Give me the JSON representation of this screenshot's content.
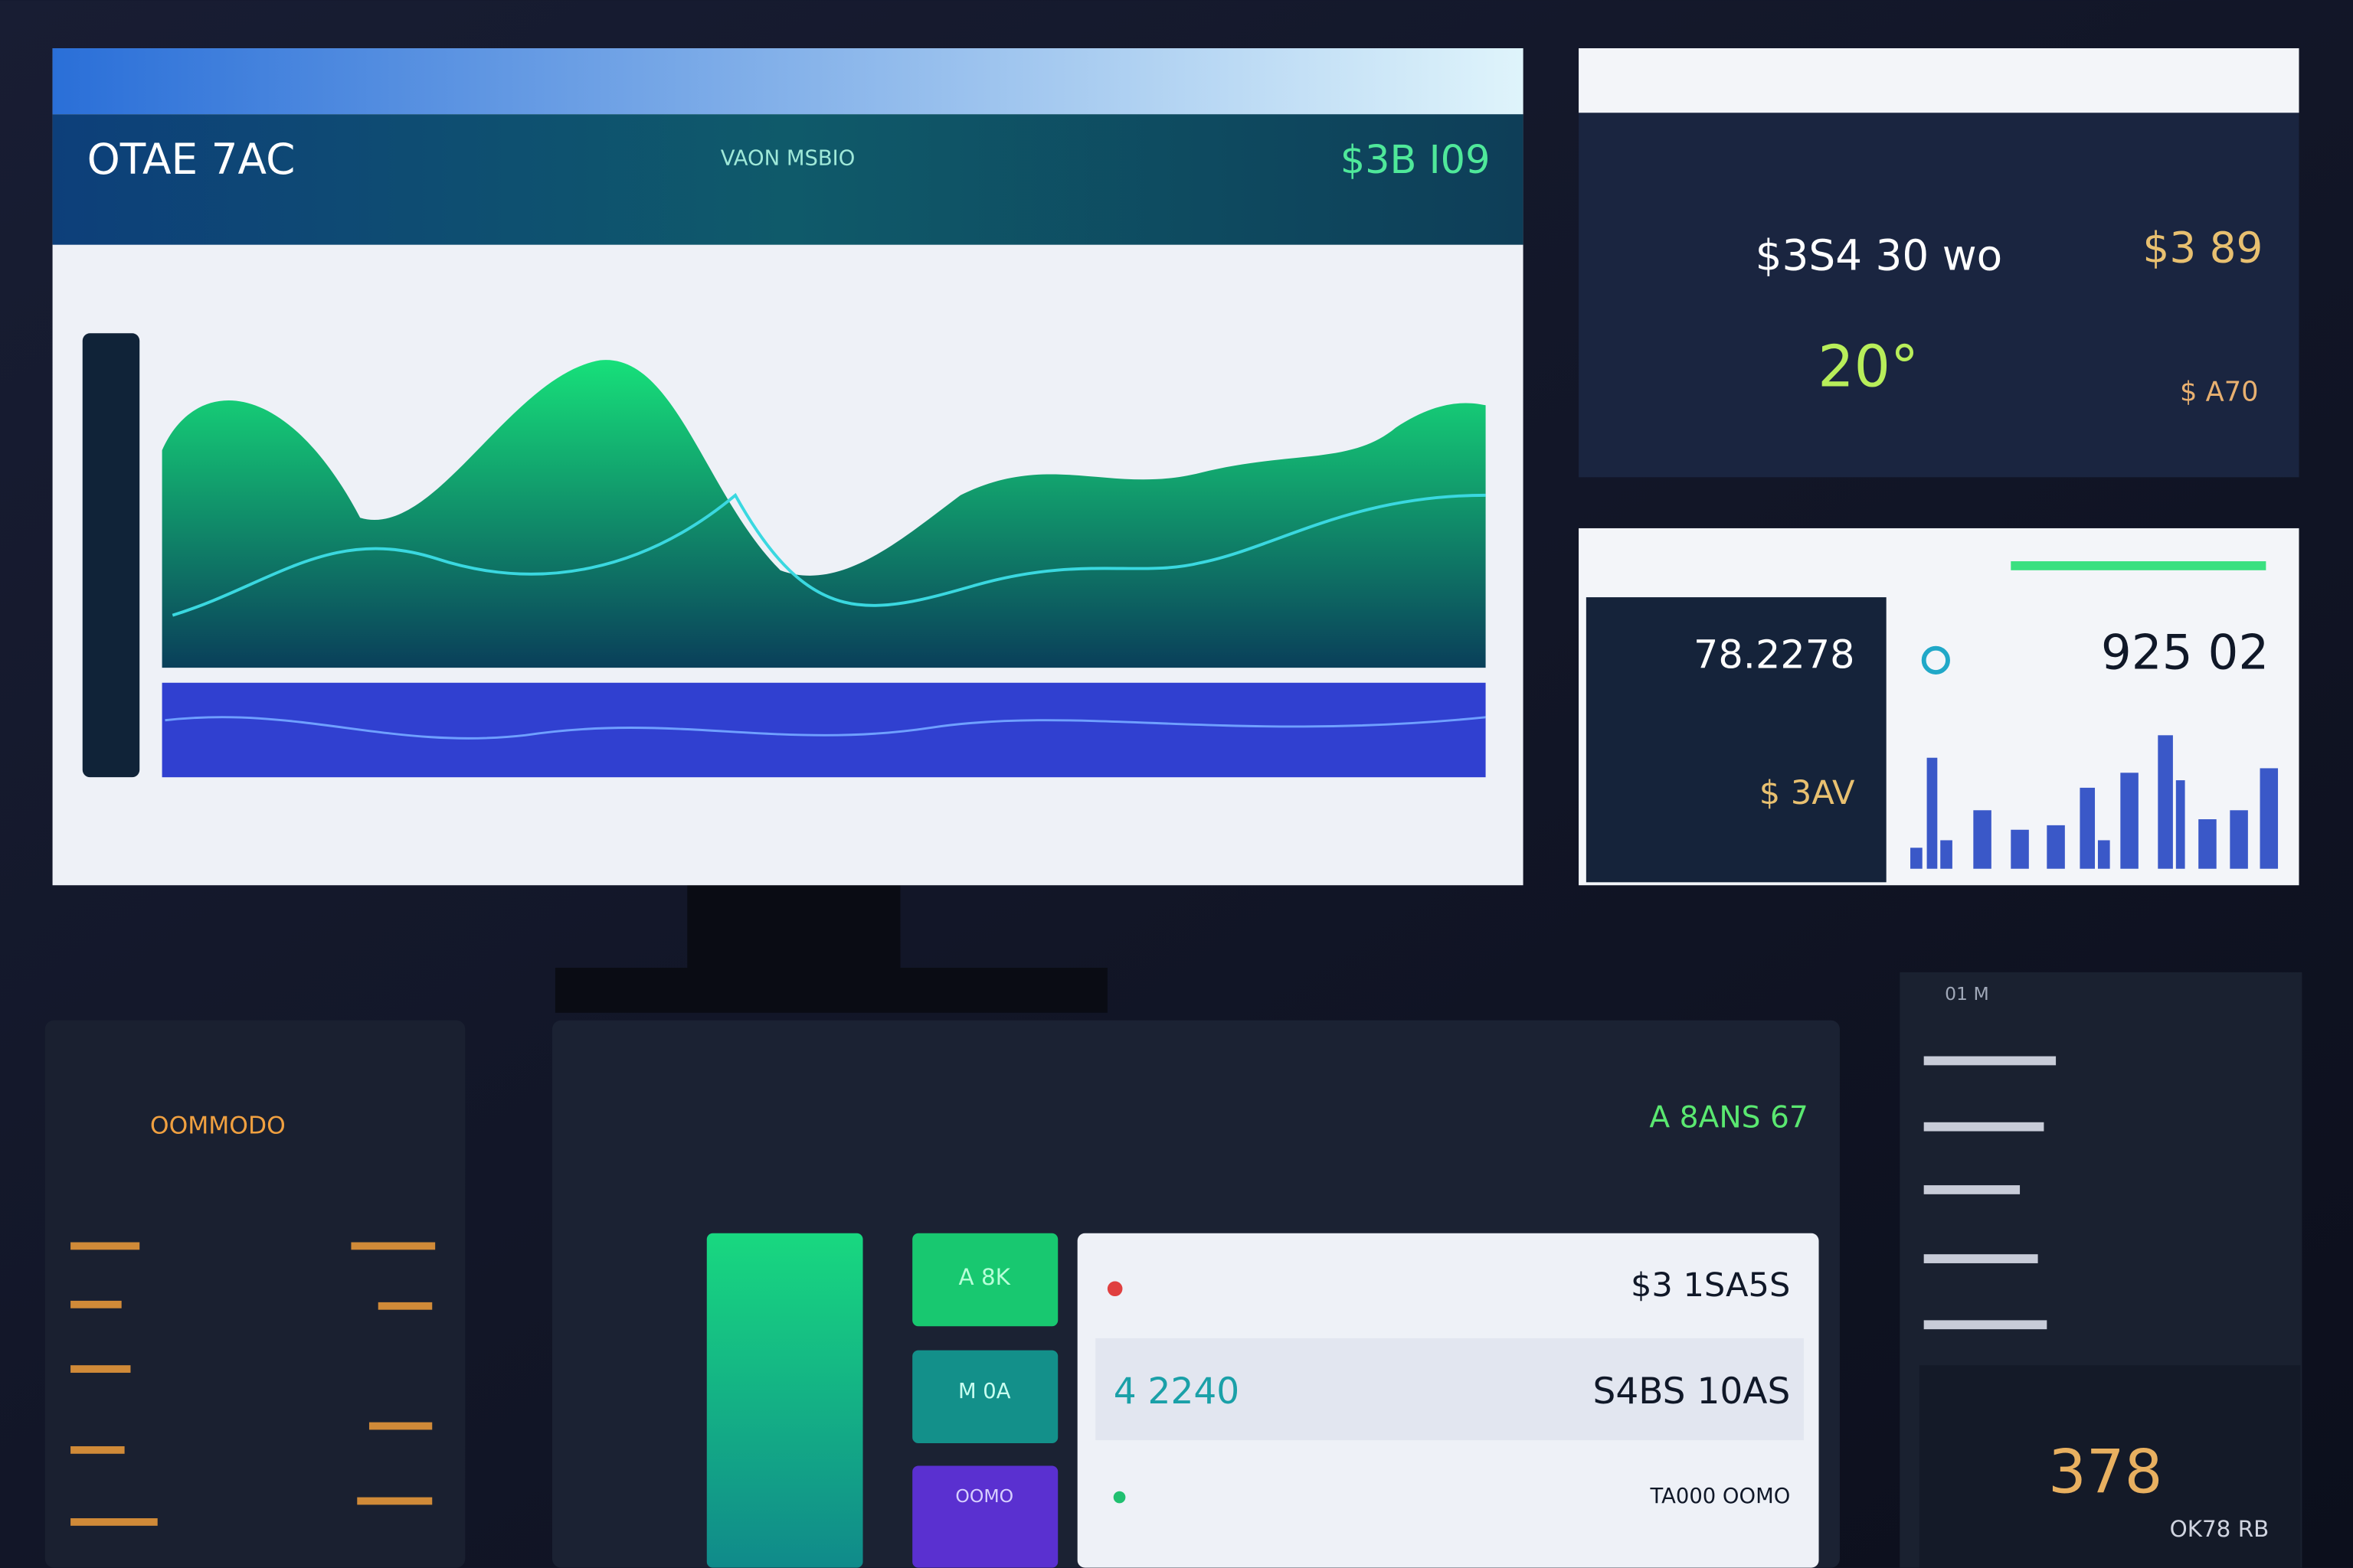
{
  "main_panel": {
    "title": "OTAE 7AC",
    "center_label": "VAON MSBIO",
    "value": "$3B I09"
  },
  "side_panel_1": {
    "value_main": "$3S4 30 wo",
    "value_right": "$3 89",
    "temp": "20°",
    "value_small": "$ A70"
  },
  "side_panel_2": {
    "value_left": "78.2278",
    "value_sub": "$ 3AV",
    "value_right": "925 02"
  },
  "bottom_left": {
    "label": "OOMMODO"
  },
  "bottom_center": {
    "label": "A 8ANS 67",
    "tiles": [
      "A 8K",
      "M 0A",
      "OOMO"
    ],
    "rows": [
      {
        "value": "$3 1SA5S"
      },
      {
        "left": "4 2240",
        "value": "S4BS 10AS"
      },
      {
        "value": "TA000 OOMO"
      }
    ]
  },
  "bottom_right": {
    "header": "01 M",
    "value": "378",
    "footer": "OK78 RB"
  }
}
